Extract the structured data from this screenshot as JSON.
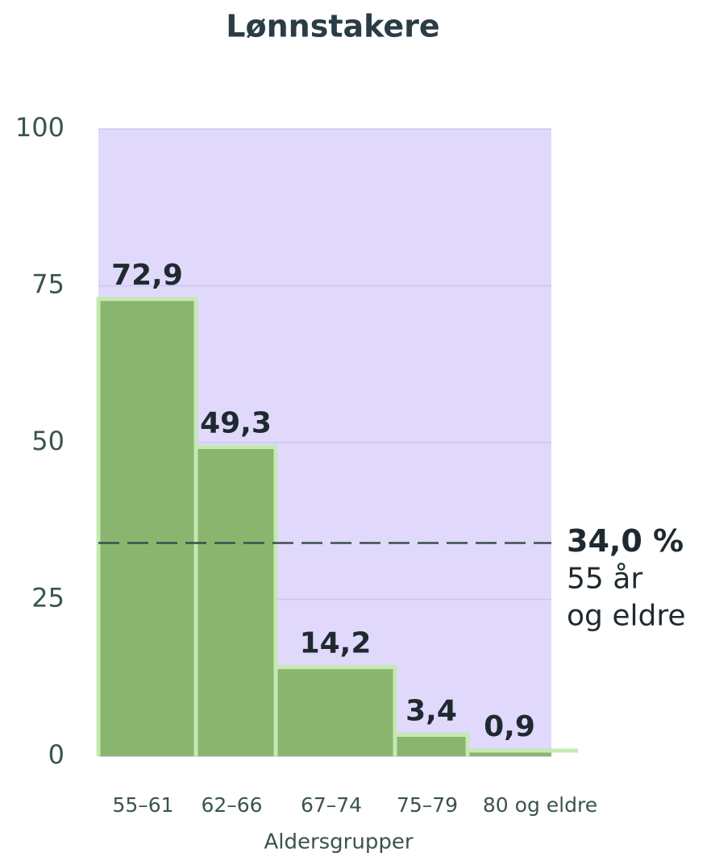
{
  "chart_data": {
    "type": "bar",
    "title": "Lønnstakere",
    "categories": [
      "55–61",
      "62–66",
      "67–74",
      "75–79",
      "80 og eldre"
    ],
    "values": [
      72.9,
      49.3,
      14.2,
      3.4,
      0.9
    ],
    "value_labels": [
      "72,9",
      "49,3",
      "14,2",
      "3,4",
      "0,9"
    ],
    "color": "#8ab56f",
    "ylim": [
      0,
      100
    ],
    "yticks": [
      0,
      25,
      50,
      75,
      100
    ],
    "grid": true,
    "xlabel": "Aldersgrupper",
    "reference_line": {
      "value": 34,
      "label": "34,0 %",
      "text": [
        "55 år",
        "og eldre"
      ]
    }
  }
}
